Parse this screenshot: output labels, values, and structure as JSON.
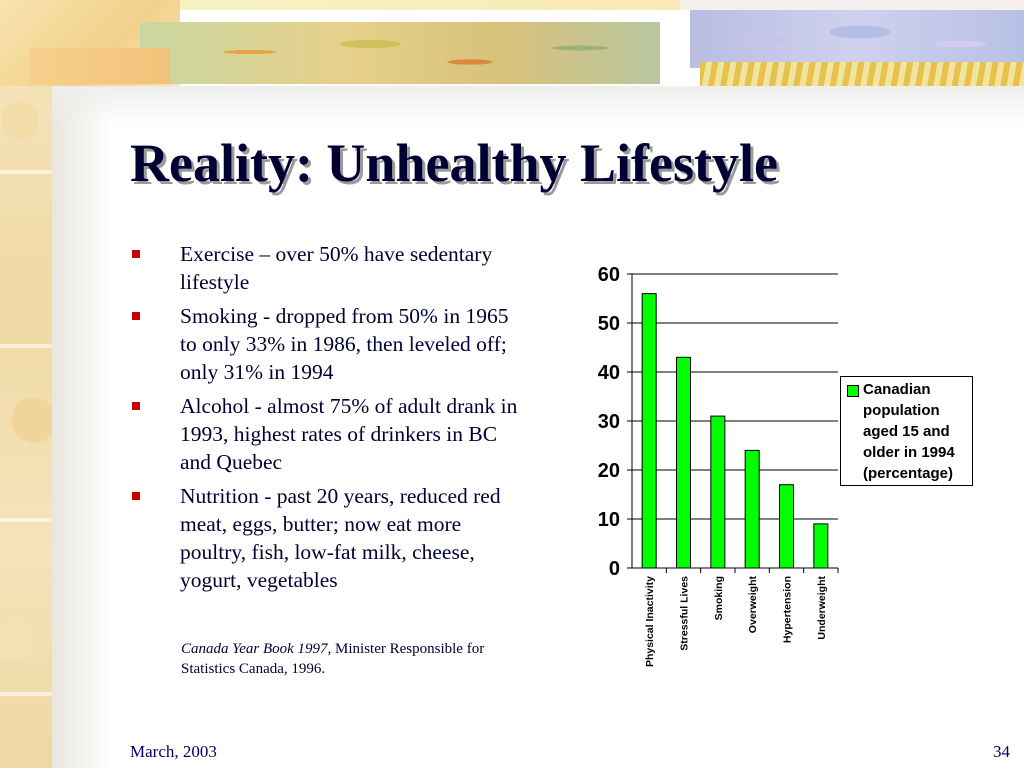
{
  "slide": {
    "title": "Reality: Unhealthy Lifestyle",
    "bullets": [
      "Exercise – over 50% have sedentary lifestyle",
      "Smoking - dropped from 50% in 1965 to only 33% in 1986, then leveled off; only 31% in 1994",
      "Alcohol - almost 75% of adult drank in 1993, highest rates of drinkers in BC and Quebec",
      "Nutrition - past 20 years, reduced red meat, eggs, butter;  now eat more poultry, fish, low-fat milk, cheese, yogurt, vegetables"
    ],
    "citation": {
      "source_title": "Canada Year Book 1997,",
      "source_rest": " Minister Responsible for Statistics Canada, 1996."
    },
    "footer": {
      "date": "March, 2003",
      "page_number": "34"
    },
    "colors": {
      "title": "#000033",
      "bullet_marker": "#cc0000",
      "bar_fill": "#00ff00"
    }
  },
  "chart_data": {
    "type": "bar",
    "categories": [
      "Physical Inactivity",
      "Stressful Lives",
      "Smoking",
      "Overweight",
      "Hypertension",
      "Underweight"
    ],
    "series": [
      {
        "name": "Canadian population aged 15 and older in 1994 (percentage)",
        "values": [
          56,
          43,
          31,
          24,
          17,
          9
        ]
      }
    ],
    "ylim": [
      0,
      60
    ],
    "yticks": [
      0,
      10,
      20,
      30,
      40,
      50,
      60
    ],
    "grid": true,
    "legend_position": "right"
  }
}
